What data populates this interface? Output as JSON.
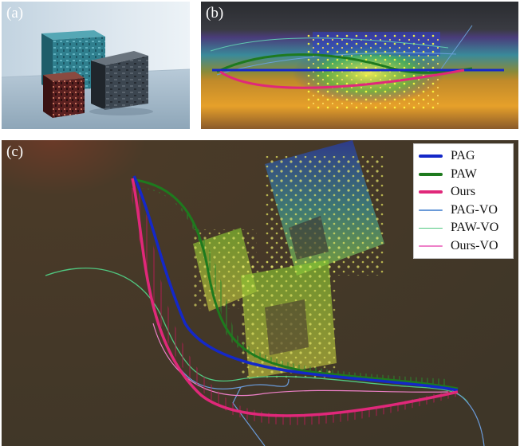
{
  "panels": {
    "a": {
      "label": "(a)"
    },
    "b": {
      "label": "(b)"
    },
    "c": {
      "label": "(c)"
    }
  },
  "legend": [
    {
      "name": "PAG",
      "color": "#1428c8",
      "weight": "thick"
    },
    {
      "name": "PAW",
      "color": "#1e7a1e",
      "weight": "thick"
    },
    {
      "name": "Ours",
      "color": "#e0287a",
      "weight": "thick"
    },
    {
      "name": "PAG-VO",
      "color": "#6a9ad8",
      "weight": "thin"
    },
    {
      "name": "PAW-VO",
      "color": "#50c880",
      "weight": "thin"
    },
    {
      "name": "Ours-VO",
      "color": "#ee80c8",
      "weight": "thin"
    }
  ]
}
